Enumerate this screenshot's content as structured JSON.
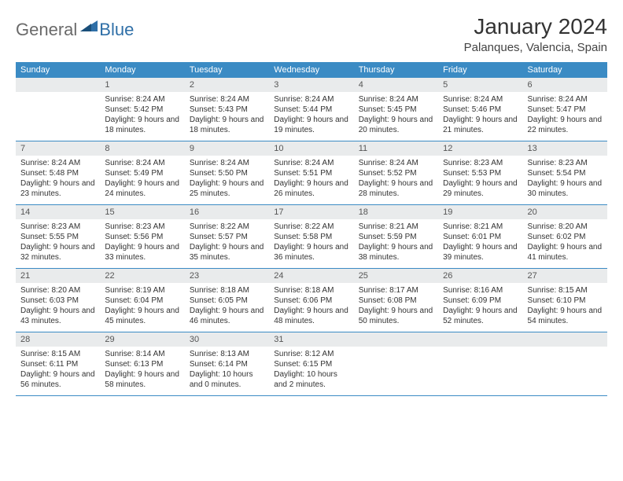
{
  "logo": {
    "general": "General",
    "blue": "Blue"
  },
  "header": {
    "title": "January 2024",
    "location": "Palanques, Valencia, Spain"
  },
  "weekdays": [
    "Sunday",
    "Monday",
    "Tuesday",
    "Wednesday",
    "Thursday",
    "Friday",
    "Saturday"
  ],
  "colors": {
    "headerBar": "#3b8bc4",
    "dayNumBg": "#e9ebec",
    "ruleLine": "#3b8bc4"
  },
  "weeks": [
    [
      {
        "num": "",
        "sunrise": "",
        "sunset": "",
        "daylight": ""
      },
      {
        "num": "1",
        "sunrise": "Sunrise: 8:24 AM",
        "sunset": "Sunset: 5:42 PM",
        "daylight": "Daylight: 9 hours and 18 minutes."
      },
      {
        "num": "2",
        "sunrise": "Sunrise: 8:24 AM",
        "sunset": "Sunset: 5:43 PM",
        "daylight": "Daylight: 9 hours and 18 minutes."
      },
      {
        "num": "3",
        "sunrise": "Sunrise: 8:24 AM",
        "sunset": "Sunset: 5:44 PM",
        "daylight": "Daylight: 9 hours and 19 minutes."
      },
      {
        "num": "4",
        "sunrise": "Sunrise: 8:24 AM",
        "sunset": "Sunset: 5:45 PM",
        "daylight": "Daylight: 9 hours and 20 minutes."
      },
      {
        "num": "5",
        "sunrise": "Sunrise: 8:24 AM",
        "sunset": "Sunset: 5:46 PM",
        "daylight": "Daylight: 9 hours and 21 minutes."
      },
      {
        "num": "6",
        "sunrise": "Sunrise: 8:24 AM",
        "sunset": "Sunset: 5:47 PM",
        "daylight": "Daylight: 9 hours and 22 minutes."
      }
    ],
    [
      {
        "num": "7",
        "sunrise": "Sunrise: 8:24 AM",
        "sunset": "Sunset: 5:48 PM",
        "daylight": "Daylight: 9 hours and 23 minutes."
      },
      {
        "num": "8",
        "sunrise": "Sunrise: 8:24 AM",
        "sunset": "Sunset: 5:49 PM",
        "daylight": "Daylight: 9 hours and 24 minutes."
      },
      {
        "num": "9",
        "sunrise": "Sunrise: 8:24 AM",
        "sunset": "Sunset: 5:50 PM",
        "daylight": "Daylight: 9 hours and 25 minutes."
      },
      {
        "num": "10",
        "sunrise": "Sunrise: 8:24 AM",
        "sunset": "Sunset: 5:51 PM",
        "daylight": "Daylight: 9 hours and 26 minutes."
      },
      {
        "num": "11",
        "sunrise": "Sunrise: 8:24 AM",
        "sunset": "Sunset: 5:52 PM",
        "daylight": "Daylight: 9 hours and 28 minutes."
      },
      {
        "num": "12",
        "sunrise": "Sunrise: 8:23 AM",
        "sunset": "Sunset: 5:53 PM",
        "daylight": "Daylight: 9 hours and 29 minutes."
      },
      {
        "num": "13",
        "sunrise": "Sunrise: 8:23 AM",
        "sunset": "Sunset: 5:54 PM",
        "daylight": "Daylight: 9 hours and 30 minutes."
      }
    ],
    [
      {
        "num": "14",
        "sunrise": "Sunrise: 8:23 AM",
        "sunset": "Sunset: 5:55 PM",
        "daylight": "Daylight: 9 hours and 32 minutes."
      },
      {
        "num": "15",
        "sunrise": "Sunrise: 8:23 AM",
        "sunset": "Sunset: 5:56 PM",
        "daylight": "Daylight: 9 hours and 33 minutes."
      },
      {
        "num": "16",
        "sunrise": "Sunrise: 8:22 AM",
        "sunset": "Sunset: 5:57 PM",
        "daylight": "Daylight: 9 hours and 35 minutes."
      },
      {
        "num": "17",
        "sunrise": "Sunrise: 8:22 AM",
        "sunset": "Sunset: 5:58 PM",
        "daylight": "Daylight: 9 hours and 36 minutes."
      },
      {
        "num": "18",
        "sunrise": "Sunrise: 8:21 AM",
        "sunset": "Sunset: 5:59 PM",
        "daylight": "Daylight: 9 hours and 38 minutes."
      },
      {
        "num": "19",
        "sunrise": "Sunrise: 8:21 AM",
        "sunset": "Sunset: 6:01 PM",
        "daylight": "Daylight: 9 hours and 39 minutes."
      },
      {
        "num": "20",
        "sunrise": "Sunrise: 8:20 AM",
        "sunset": "Sunset: 6:02 PM",
        "daylight": "Daylight: 9 hours and 41 minutes."
      }
    ],
    [
      {
        "num": "21",
        "sunrise": "Sunrise: 8:20 AM",
        "sunset": "Sunset: 6:03 PM",
        "daylight": "Daylight: 9 hours and 43 minutes."
      },
      {
        "num": "22",
        "sunrise": "Sunrise: 8:19 AM",
        "sunset": "Sunset: 6:04 PM",
        "daylight": "Daylight: 9 hours and 45 minutes."
      },
      {
        "num": "23",
        "sunrise": "Sunrise: 8:18 AM",
        "sunset": "Sunset: 6:05 PM",
        "daylight": "Daylight: 9 hours and 46 minutes."
      },
      {
        "num": "24",
        "sunrise": "Sunrise: 8:18 AM",
        "sunset": "Sunset: 6:06 PM",
        "daylight": "Daylight: 9 hours and 48 minutes."
      },
      {
        "num": "25",
        "sunrise": "Sunrise: 8:17 AM",
        "sunset": "Sunset: 6:08 PM",
        "daylight": "Daylight: 9 hours and 50 minutes."
      },
      {
        "num": "26",
        "sunrise": "Sunrise: 8:16 AM",
        "sunset": "Sunset: 6:09 PM",
        "daylight": "Daylight: 9 hours and 52 minutes."
      },
      {
        "num": "27",
        "sunrise": "Sunrise: 8:15 AM",
        "sunset": "Sunset: 6:10 PM",
        "daylight": "Daylight: 9 hours and 54 minutes."
      }
    ],
    [
      {
        "num": "28",
        "sunrise": "Sunrise: 8:15 AM",
        "sunset": "Sunset: 6:11 PM",
        "daylight": "Daylight: 9 hours and 56 minutes."
      },
      {
        "num": "29",
        "sunrise": "Sunrise: 8:14 AM",
        "sunset": "Sunset: 6:13 PM",
        "daylight": "Daylight: 9 hours and 58 minutes."
      },
      {
        "num": "30",
        "sunrise": "Sunrise: 8:13 AM",
        "sunset": "Sunset: 6:14 PM",
        "daylight": "Daylight: 10 hours and 0 minutes."
      },
      {
        "num": "31",
        "sunrise": "Sunrise: 8:12 AM",
        "sunset": "Sunset: 6:15 PM",
        "daylight": "Daylight: 10 hours and 2 minutes."
      },
      {
        "num": "",
        "sunrise": "",
        "sunset": "",
        "daylight": ""
      },
      {
        "num": "",
        "sunrise": "",
        "sunset": "",
        "daylight": ""
      },
      {
        "num": "",
        "sunrise": "",
        "sunset": "",
        "daylight": ""
      }
    ]
  ]
}
